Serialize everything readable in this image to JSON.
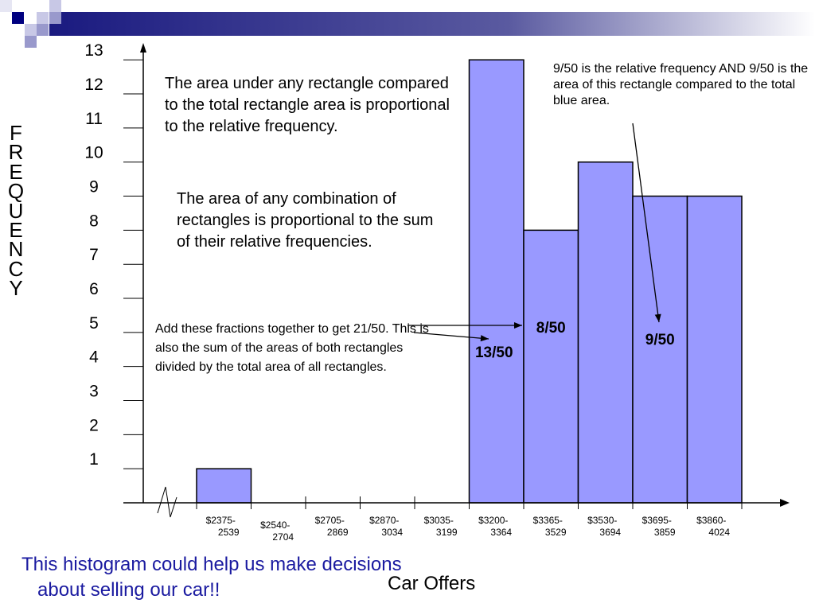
{
  "slide": {
    "decoration_colors": [
      "#000080",
      "#9999cc",
      "#c8c8e6"
    ],
    "caption": [
      "This histogram could help us make decisions",
      "about selling our car!!"
    ],
    "caption_color": "#1a1aa0"
  },
  "notes": {
    "area_rect": "The area under any rectangle compared to the total rectangle area is proportional to the relative frequency.",
    "area_comb": "The area of any combination of rectangles is proportional to the sum of their relative frequencies.",
    "add_fractions": "Add these fractions together to get 21/50.  This is also the sum of the areas of both rectangles divided by the total area of all rectangles.",
    "rel_freq": "9/50 is the relative frequency AND 9/50 is the area of this rectangle compared to the total blue area."
  },
  "chart_data": {
    "type": "bar",
    "title": "",
    "xlabel": "Car Offers",
    "ylabel": "FREQUENCY",
    "ylabel_letters": [
      "F",
      "R",
      "E",
      "Q",
      "U",
      "E",
      "N",
      "C",
      "Y"
    ],
    "categories": [
      [
        "$2375-",
        "2539"
      ],
      [
        "$2540-",
        "2704"
      ],
      [
        "$2705-",
        "2869"
      ],
      [
        "$2870-",
        "3034"
      ],
      [
        "$3035-",
        "3199"
      ],
      [
        "$3200-",
        "3364"
      ],
      [
        "$3365-",
        "3529"
      ],
      [
        "$3530-",
        "3694"
      ],
      [
        "$3695-",
        "3859"
      ],
      [
        "$3860-",
        "4024"
      ]
    ],
    "values": [
      1,
      0,
      0,
      0,
      0,
      13,
      8,
      10,
      9,
      9
    ],
    "yticks": [
      "1",
      "2",
      "3",
      "4",
      "5",
      "6",
      "7",
      "8",
      "9",
      "10",
      "11",
      "12",
      "13"
    ],
    "ylim": [
      0,
      13
    ],
    "bar_color": "#9999ff",
    "data_labels": [
      {
        "category_index": 5,
        "text": "13/50"
      },
      {
        "category_index": 6,
        "text": "8/50"
      },
      {
        "category_index": 8,
        "text": "9/50"
      }
    ],
    "grid": false,
    "axis_break": true
  }
}
